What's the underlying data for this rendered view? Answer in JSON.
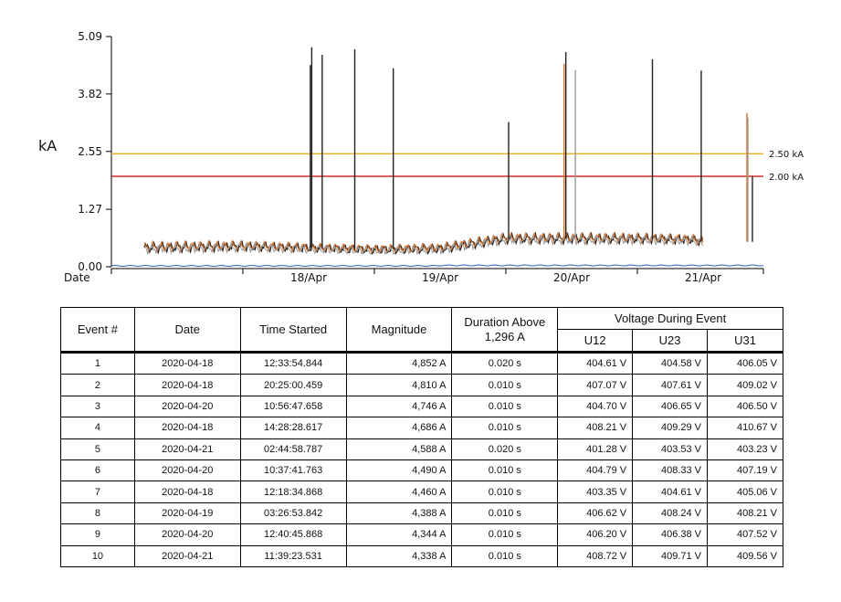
{
  "chart_data": {
    "type": "line",
    "ylabel": "kA",
    "xlabel": "Date",
    "ylim": [
      0,
      5.09
    ],
    "yticks": [
      "0.00",
      "1.27",
      "2.55",
      "3.82",
      "5.09"
    ],
    "x_range_days": [
      "2020-04-17",
      "2020-04-21"
    ],
    "xticks": [
      "18/Apr",
      "19/Apr",
      "20/Apr",
      "21/Apr"
    ],
    "thresholds": [
      {
        "label": "2.50 kA",
        "value": 2.5,
        "color": "#f0a000"
      },
      {
        "label": "2.00 kA",
        "value": 2.0,
        "color": "#cc0000"
      }
    ],
    "series_colors": [
      "#222222",
      "#e07020",
      "#999999"
    ],
    "baseline_color": "#3060c0",
    "baseline_level_kA": 0.02,
    "background_level_kA": [
      {
        "date": "2020-04-17 06:00",
        "value": 0.42
      },
      {
        "date": "2020-04-18 00:00",
        "value": 0.45
      },
      {
        "date": "2020-04-19 00:00",
        "value": 0.38
      },
      {
        "date": "2020-04-19 12:00",
        "value": 0.4
      },
      {
        "date": "2020-04-20 00:00",
        "value": 0.62
      },
      {
        "date": "2020-04-21 00:00",
        "value": 0.62
      },
      {
        "date": "2020-04-21 10:00",
        "value": 0.6
      },
      {
        "date": "2020-04-21 12:00",
        "value": 0.55
      }
    ],
    "spikes": [
      {
        "time": "2020-04-18 12:18:34",
        "value": 4.46,
        "color": "#222222"
      },
      {
        "time": "2020-04-18 12:33:54",
        "value": 4.852,
        "color": "#222222"
      },
      {
        "time": "2020-04-18 14:28:28",
        "value": 4.686,
        "color": "#222222"
      },
      {
        "time": "2020-04-18 20:25:00",
        "value": 4.81,
        "color": "#222222"
      },
      {
        "time": "2020-04-19 03:26:53",
        "value": 4.388,
        "color": "#222222"
      },
      {
        "time": "2020-04-20 00:30:00",
        "value": 3.2,
        "color": "#222222"
      },
      {
        "time": "2020-04-20 10:37:41",
        "value": 4.49,
        "color": "#e07020"
      },
      {
        "time": "2020-04-20 10:56:47",
        "value": 4.746,
        "color": "#222222"
      },
      {
        "time": "2020-04-20 12:40:45",
        "value": 4.344,
        "color": "#999999"
      },
      {
        "time": "2020-04-21 02:44:58",
        "value": 4.588,
        "color": "#222222"
      },
      {
        "time": "2020-04-21 11:39:23",
        "value": 4.338,
        "color": "#222222"
      },
      {
        "time": "2020-04-21 20:00:00",
        "value": 3.4,
        "color": "#e07020"
      },
      {
        "time": "2020-04-21 20:10:00",
        "value": 3.3,
        "color": "#999999"
      },
      {
        "time": "2020-04-21 21:00:00",
        "value": 2.0,
        "color": "#222222"
      }
    ]
  },
  "table": {
    "headers": {
      "event": "Event #",
      "date": "Date",
      "time": "Time Started",
      "magnitude": "Magnitude",
      "duration": "Duration Above 1,296 A",
      "voltage_group": "Voltage During Event",
      "u12": "U12",
      "u23": "U23",
      "u31": "U31"
    },
    "rows": [
      [
        "1",
        "2020-04-18",
        "12:33:54.844",
        "4,852 A",
        "0.020 s",
        "404.61 V",
        "404.58 V",
        "406.05 V"
      ],
      [
        "2",
        "2020-04-18",
        "20:25:00.459",
        "4,810 A",
        "0.010 s",
        "407.07 V",
        "407.61 V",
        "409.02 V"
      ],
      [
        "3",
        "2020-04-20",
        "10:56:47.658",
        "4,746 A",
        "0.010 s",
        "404.70 V",
        "406.65 V",
        "406.50 V"
      ],
      [
        "4",
        "2020-04-18",
        "14:28:28.617",
        "4,686 A",
        "0.010 s",
        "408.21 V",
        "409.29 V",
        "410.67 V"
      ],
      [
        "5",
        "2020-04-21",
        "02:44:58.787",
        "4,588 A",
        "0.020 s",
        "401.28 V",
        "403.53 V",
        "403.23 V"
      ],
      [
        "6",
        "2020-04-20",
        "10:37:41.763",
        "4,490 A",
        "0.010 s",
        "404.79 V",
        "408.33 V",
        "407.19 V"
      ],
      [
        "7",
        "2020-04-18",
        "12:18:34.868",
        "4,460 A",
        "0.010 s",
        "403.35 V",
        "404.61 V",
        "405.06 V"
      ],
      [
        "8",
        "2020-04-19",
        "03:26:53.842",
        "4,388 A",
        "0.010 s",
        "406.62 V",
        "408.24 V",
        "408.21 V"
      ],
      [
        "9",
        "2020-04-20",
        "12:40:45.868",
        "4,344 A",
        "0.010 s",
        "406.20 V",
        "406.38 V",
        "407.52 V"
      ],
      [
        "10",
        "2020-04-21",
        "11:39:23.531",
        "4,338 A",
        "0.010 s",
        "408.72 V",
        "409.71 V",
        "409.56 V"
      ]
    ]
  }
}
